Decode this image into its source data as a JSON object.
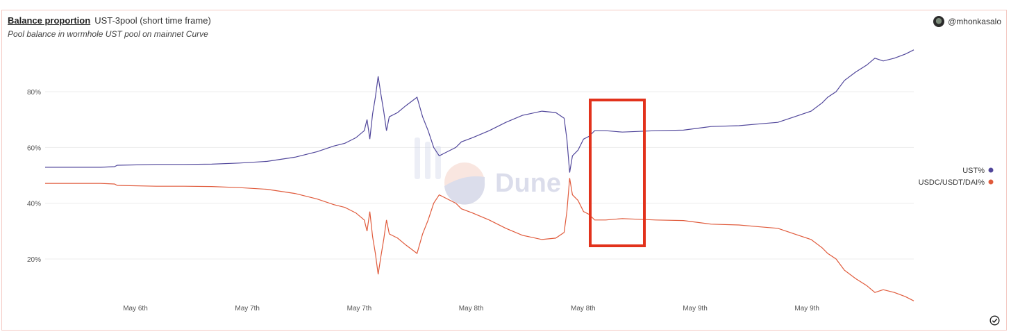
{
  "header": {
    "title": "Balance proportion",
    "query_name": "UST-3pool (short time frame)",
    "subtitle": "Pool balance in wormhole UST pool on mainnet Curve",
    "author": "@mhonkasalo"
  },
  "watermark": {
    "text": "Dune"
  },
  "colors": {
    "ust": "#51479b",
    "usdc": "#e05a3b",
    "highlight": "#e2321c",
    "grid": "#ececec"
  },
  "icons": {
    "author_avatar": "avatar-icon",
    "status": "check-circle-icon"
  },
  "chart_data": {
    "type": "line",
    "title": "Balance proportion",
    "x_tick_labels": [
      "May 6th",
      "May 7th",
      "May 7th",
      "May 8th",
      "May 8th",
      "May 9th",
      "May 9th"
    ],
    "y_tick_labels": [
      "20%",
      "40%",
      "60%",
      "80%"
    ],
    "ylim": [
      5,
      95
    ],
    "grid": true,
    "legend_position": "right",
    "annotation": "red rectangle highlighting the sharp UST% drop / USDC/USDT/DAI% spike after the 5th May 8th tick",
    "series": [
      {
        "name": "UST%",
        "points": [
          [
            0,
            52.9
          ],
          [
            0.5,
            52.9
          ],
          [
            1.0,
            52.9
          ],
          [
            1.25,
            53.1
          ],
          [
            1.3,
            53.6
          ],
          [
            2.0,
            53.9
          ],
          [
            2.5,
            53.9
          ],
          [
            3.0,
            54.0
          ],
          [
            3.5,
            54.4
          ],
          [
            4.0,
            55.0
          ],
          [
            4.5,
            56.5
          ],
          [
            4.9,
            58.5
          ],
          [
            5.2,
            60.5
          ],
          [
            5.4,
            61.5
          ],
          [
            5.6,
            63.5
          ],
          [
            5.75,
            66.0
          ],
          [
            5.8,
            70.0
          ],
          [
            5.85,
            63.0
          ],
          [
            5.9,
            72.0
          ],
          [
            5.95,
            78.0
          ],
          [
            6.0,
            85.5
          ],
          [
            6.05,
            79.0
          ],
          [
            6.1,
            73.0
          ],
          [
            6.15,
            66.0
          ],
          [
            6.2,
            71.0
          ],
          [
            6.35,
            72.5
          ],
          [
            6.5,
            75.0
          ],
          [
            6.6,
            76.5
          ],
          [
            6.7,
            78.0
          ],
          [
            6.8,
            71.0
          ],
          [
            6.9,
            66.0
          ],
          [
            7.0,
            60.0
          ],
          [
            7.1,
            57.0
          ],
          [
            7.2,
            58.0
          ],
          [
            7.4,
            60.0
          ],
          [
            7.5,
            62.0
          ],
          [
            7.7,
            63.5
          ],
          [
            8.0,
            66.0
          ],
          [
            8.3,
            69.0
          ],
          [
            8.6,
            71.5
          ],
          [
            8.95,
            73.0
          ],
          [
            9.2,
            72.5
          ],
          [
            9.35,
            70.5
          ],
          [
            9.4,
            63.0
          ],
          [
            9.45,
            51.0
          ],
          [
            9.5,
            57.0
          ],
          [
            9.6,
            59.0
          ],
          [
            9.7,
            63.0
          ],
          [
            9.8,
            64.0
          ],
          [
            9.9,
            66.0
          ],
          [
            10.1,
            66.0
          ],
          [
            10.4,
            65.5
          ],
          [
            11.0,
            66.0
          ],
          [
            11.5,
            66.2
          ],
          [
            12.0,
            67.5
          ],
          [
            12.5,
            67.8
          ],
          [
            12.9,
            68.5
          ],
          [
            13.2,
            69.0
          ],
          [
            13.5,
            71.0
          ],
          [
            13.8,
            73.0
          ],
          [
            14.0,
            76.0
          ],
          [
            14.1,
            78.0
          ],
          [
            14.25,
            80.0
          ],
          [
            14.4,
            84.0
          ],
          [
            14.6,
            87.0
          ],
          [
            14.8,
            89.5
          ],
          [
            14.95,
            92.0
          ],
          [
            15.1,
            91.0
          ],
          [
            15.3,
            92.0
          ],
          [
            15.5,
            93.5
          ],
          [
            15.65,
            95.0
          ]
        ]
      },
      {
        "name": "USDC/USDT/DAI%",
        "points": [
          [
            0,
            47.1
          ],
          [
            0.5,
            47.1
          ],
          [
            1.0,
            47.1
          ],
          [
            1.25,
            46.9
          ],
          [
            1.3,
            46.4
          ],
          [
            2.0,
            46.1
          ],
          [
            2.5,
            46.1
          ],
          [
            3.0,
            46.0
          ],
          [
            3.5,
            45.6
          ],
          [
            4.0,
            45.0
          ],
          [
            4.5,
            43.5
          ],
          [
            4.9,
            41.5
          ],
          [
            5.2,
            39.5
          ],
          [
            5.4,
            38.5
          ],
          [
            5.6,
            36.5
          ],
          [
            5.75,
            34.0
          ],
          [
            5.8,
            30.0
          ],
          [
            5.85,
            37.0
          ],
          [
            5.9,
            28.0
          ],
          [
            5.95,
            22.0
          ],
          [
            6.0,
            14.5
          ],
          [
            6.05,
            21.0
          ],
          [
            6.1,
            27.0
          ],
          [
            6.15,
            34.0
          ],
          [
            6.2,
            29.0
          ],
          [
            6.35,
            27.5
          ],
          [
            6.5,
            25.0
          ],
          [
            6.6,
            23.5
          ],
          [
            6.7,
            22.0
          ],
          [
            6.8,
            29.0
          ],
          [
            6.9,
            34.0
          ],
          [
            7.0,
            40.0
          ],
          [
            7.1,
            43.0
          ],
          [
            7.2,
            42.0
          ],
          [
            7.4,
            40.0
          ],
          [
            7.5,
            38.0
          ],
          [
            7.7,
            36.5
          ],
          [
            8.0,
            34.0
          ],
          [
            8.3,
            31.0
          ],
          [
            8.6,
            28.5
          ],
          [
            8.95,
            27.0
          ],
          [
            9.2,
            27.5
          ],
          [
            9.35,
            29.5
          ],
          [
            9.4,
            37.0
          ],
          [
            9.45,
            49.0
          ],
          [
            9.5,
            43.0
          ],
          [
            9.6,
            41.0
          ],
          [
            9.7,
            37.0
          ],
          [
            9.8,
            36.0
          ],
          [
            9.9,
            34.0
          ],
          [
            10.1,
            34.0
          ],
          [
            10.4,
            34.5
          ],
          [
            11.0,
            34.0
          ],
          [
            11.5,
            33.8
          ],
          [
            12.0,
            32.5
          ],
          [
            12.5,
            32.2
          ],
          [
            12.9,
            31.5
          ],
          [
            13.2,
            31.0
          ],
          [
            13.5,
            29.0
          ],
          [
            13.8,
            27.0
          ],
          [
            14.0,
            24.0
          ],
          [
            14.1,
            22.0
          ],
          [
            14.25,
            20.0
          ],
          [
            14.4,
            16.0
          ],
          [
            14.6,
            13.0
          ],
          [
            14.8,
            10.5
          ],
          [
            14.95,
            8.0
          ],
          [
            15.1,
            9.0
          ],
          [
            15.3,
            8.0
          ],
          [
            15.5,
            6.5
          ],
          [
            15.65,
            5.0
          ]
        ]
      }
    ]
  }
}
